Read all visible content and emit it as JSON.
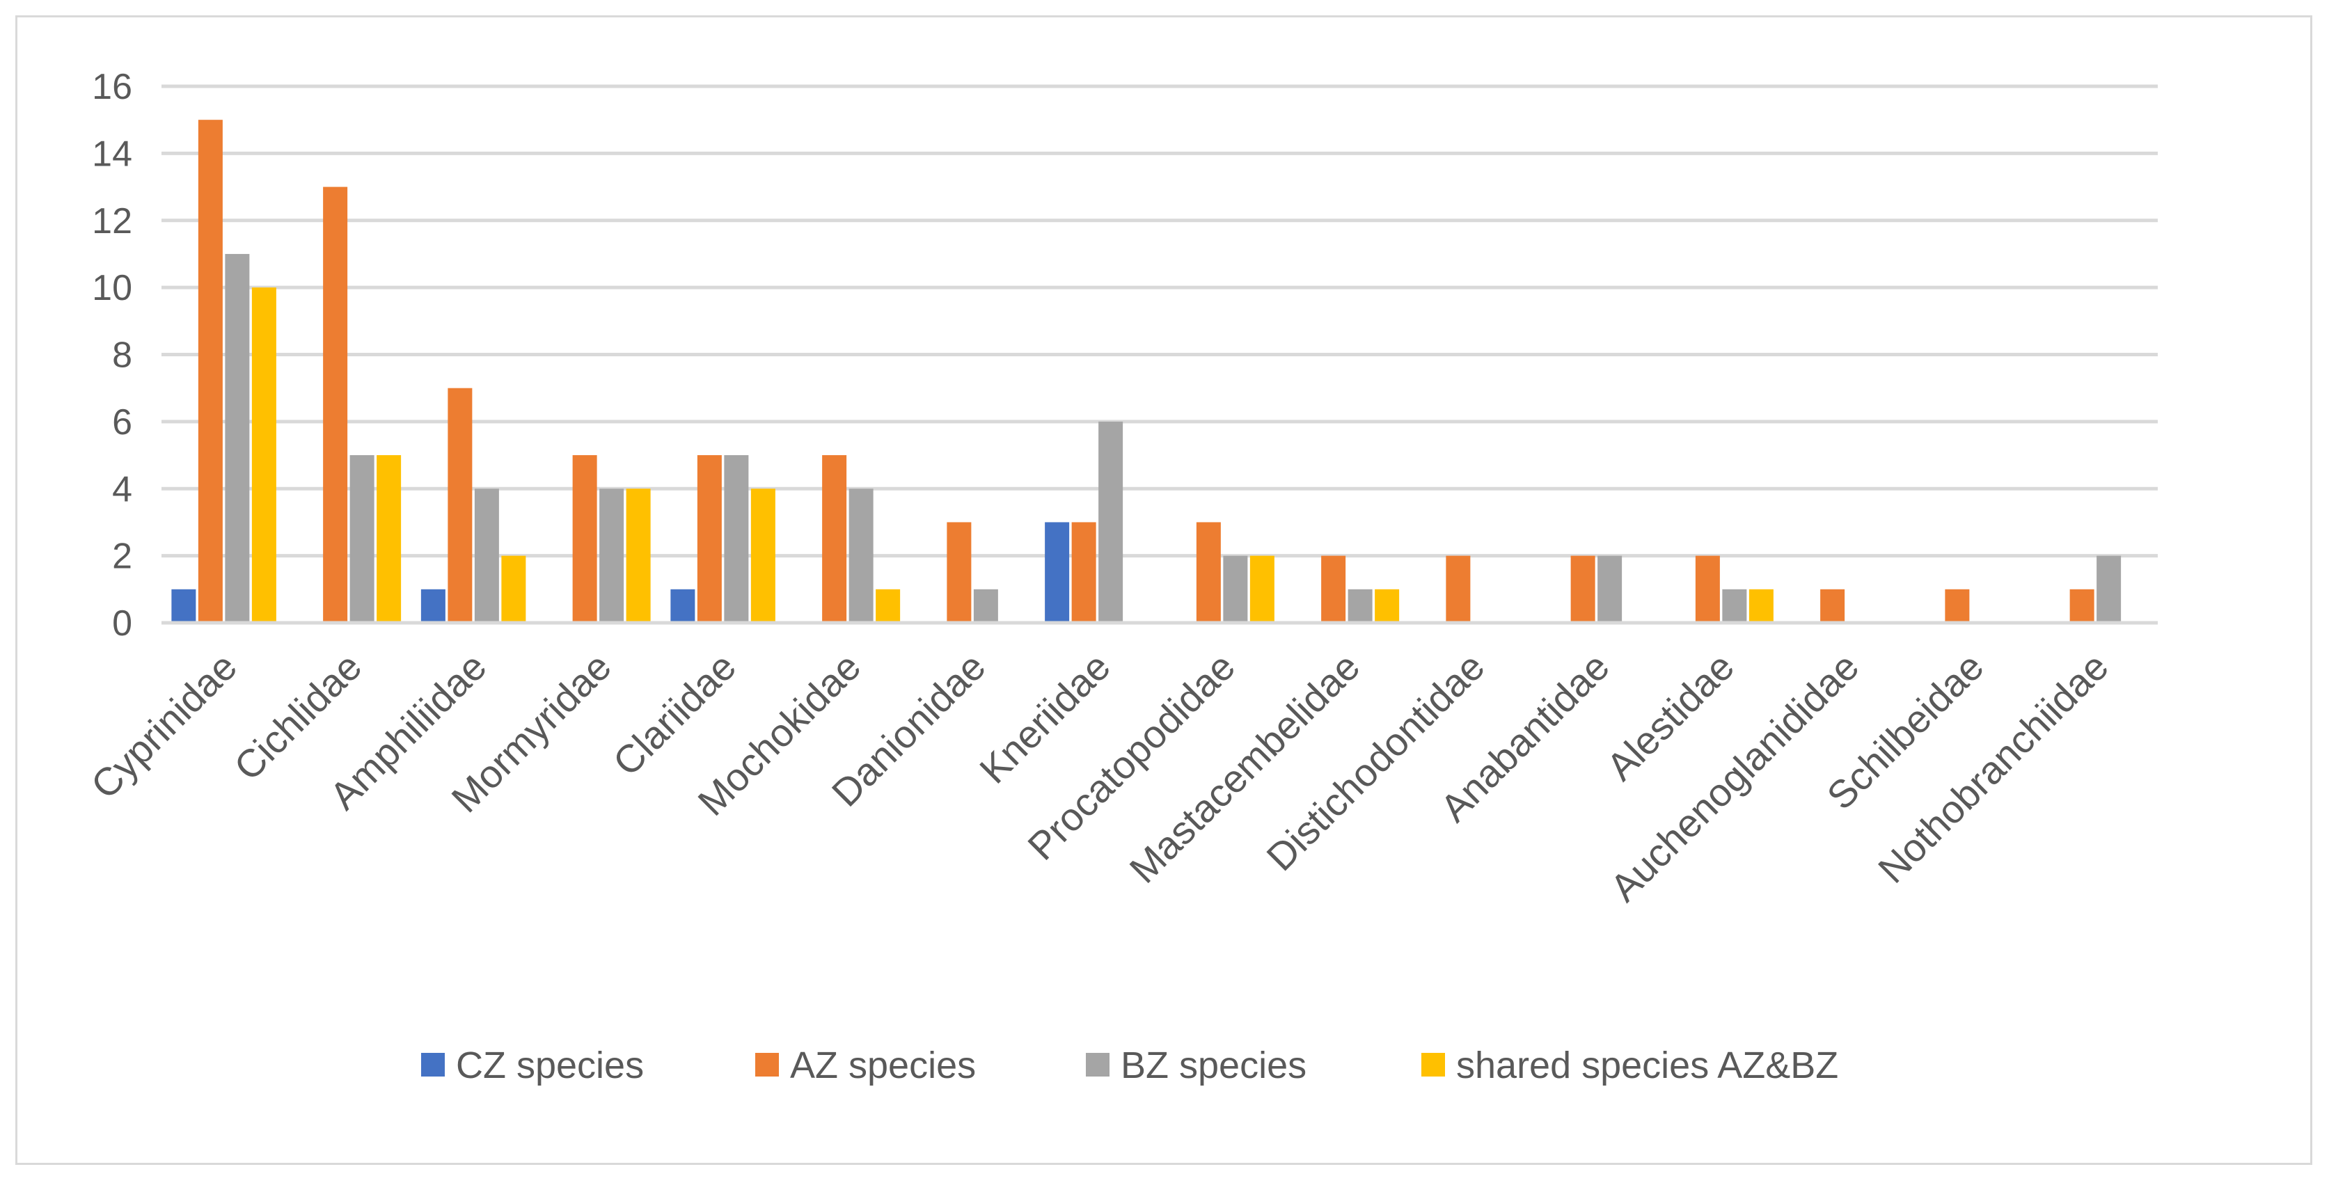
{
  "chart_data": {
    "type": "bar",
    "title": "",
    "xlabel": "",
    "ylabel": "",
    "ylim": [
      0,
      16
    ],
    "yticks": [
      0,
      2,
      4,
      6,
      8,
      10,
      12,
      14,
      16
    ],
    "grid": true,
    "legend_position": "bottom",
    "categories": [
      "Cyprinidae",
      "Cichlidae",
      "Amphiliidae",
      "Mormyridae",
      "Clariidae",
      "Mochokidae",
      "Danionidae",
      "Kneriidae",
      "Procatopodidae",
      "Mastacembelidae",
      "Distichodontidae",
      "Anabantidae",
      "Alestidae",
      "Auchenoglanididae",
      "Schilbeidae",
      "Nothobranchiidae"
    ],
    "series": [
      {
        "name": "CZ species",
        "color": "#4472c4",
        "values": [
          1,
          0,
          1,
          0,
          1,
          0,
          0,
          3,
          0,
          0,
          0,
          0,
          0,
          0,
          0,
          0
        ]
      },
      {
        "name": "AZ species",
        "color": "#ed7d31",
        "values": [
          15,
          13,
          7,
          5,
          5,
          5,
          3,
          3,
          3,
          2,
          2,
          2,
          2,
          1,
          1,
          1
        ]
      },
      {
        "name": "BZ species",
        "color": "#a5a5a5",
        "values": [
          11,
          5,
          4,
          4,
          5,
          4,
          1,
          6,
          2,
          1,
          0,
          2,
          1,
          0,
          0,
          2
        ]
      },
      {
        "name": "shared species AZ&BZ",
        "color": "#ffc000",
        "values": [
          10,
          5,
          2,
          4,
          4,
          1,
          0,
          0,
          2,
          1,
          0,
          0,
          1,
          0,
          0,
          0
        ]
      }
    ]
  }
}
